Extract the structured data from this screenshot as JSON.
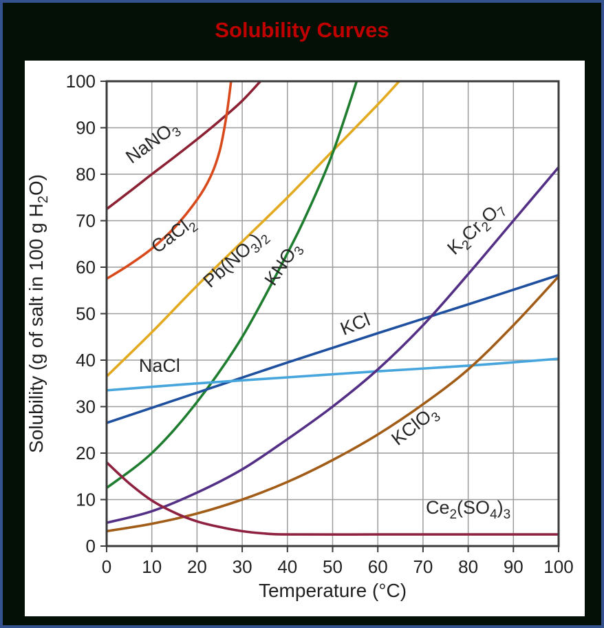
{
  "header": {
    "title": "Solubility Curves",
    "title_color": "#c00000"
  },
  "canvas": {
    "background": "#041005",
    "border_color": "#35548f",
    "panel_color": "#ffffff"
  },
  "chart_data": {
    "type": "line",
    "title": "Solubility Curves",
    "xlabel": "Temperature (°C)",
    "ylabel": "Solubility (g of salt in 100 g H₂O)",
    "ylabel_segments": [
      [
        "Solubility (g of salt in 100 g H",
        0
      ],
      [
        "2",
        1
      ],
      [
        "O)",
        0
      ]
    ],
    "xlim": [
      0,
      100
    ],
    "ylim": [
      0,
      100
    ],
    "xticks": [
      0,
      10,
      20,
      30,
      40,
      50,
      60,
      70,
      80,
      90,
      100
    ],
    "yticks": [
      0,
      10,
      20,
      30,
      40,
      50,
      60,
      70,
      80,
      90,
      100
    ],
    "grid": true,
    "grid_color": "#9c9c9c",
    "axis_color": "#3a3a3a",
    "text_color": "#1f1f1f",
    "series": [
      {
        "name": "NaNO3",
        "label": "NaNO₃",
        "label_segments": [
          [
            "NaNO",
            0
          ],
          [
            "3",
            1
          ]
        ],
        "color": "#8c2133",
        "points": [
          [
            0,
            72.5
          ],
          [
            5,
            76.2
          ],
          [
            10,
            80
          ],
          [
            15,
            83.7
          ],
          [
            20,
            87.5
          ],
          [
            25,
            91.5
          ],
          [
            30,
            95.8
          ],
          [
            34.5,
            100.5
          ]
        ],
        "label_pos": {
          "x": 10.8,
          "y": 85.9,
          "rot": -36
        }
      },
      {
        "name": "CaCl2",
        "label": "CaCl₂",
        "label_segments": [
          [
            "CaCl",
            0
          ],
          [
            "2",
            1
          ]
        ],
        "color": "#d84a1c",
        "points": [
          [
            0,
            57.5
          ],
          [
            5,
            60.5
          ],
          [
            10,
            64
          ],
          [
            15,
            68.5
          ],
          [
            20,
            74.5
          ],
          [
            23,
            79.5
          ],
          [
            25,
            85
          ],
          [
            26.5,
            92.5
          ],
          [
            27.6,
            100.5
          ]
        ],
        "label_pos": {
          "x": 15.5,
          "y": 66.0,
          "rot": -37
        }
      },
      {
        "name": "Pb(NO3)2",
        "label": "Pb(NO₃)₂",
        "label_segments": [
          [
            "Pb(NO",
            0
          ],
          [
            "3",
            1
          ],
          [
            ")",
            0
          ],
          [
            "2",
            1
          ]
        ],
        "color": "#e3a91f",
        "points": [
          [
            0,
            36.5
          ],
          [
            10,
            46
          ],
          [
            20,
            56
          ],
          [
            30,
            65.5
          ],
          [
            40,
            75
          ],
          [
            50,
            85
          ],
          [
            60,
            95
          ],
          [
            65.2,
            100.5
          ]
        ],
        "label_pos": {
          "x": 29.3,
          "y": 61.0,
          "rot": -42
        }
      },
      {
        "name": "KNO3",
        "label": "KNO₃",
        "label_segments": [
          [
            "KNO",
            0
          ],
          [
            "3",
            1
          ]
        ],
        "color": "#1f7d2f",
        "points": [
          [
            0,
            12.5
          ],
          [
            10,
            20
          ],
          [
            20,
            31
          ],
          [
            30,
            45
          ],
          [
            40,
            63
          ],
          [
            45,
            73
          ],
          [
            50,
            84.5
          ],
          [
            55.5,
            100.5
          ]
        ],
        "label_pos": {
          "x": 40.0,
          "y": 60.0,
          "rot": -56
        }
      },
      {
        "name": "KCl",
        "label": "KCl",
        "label_segments": [
          [
            "KCl",
            0
          ]
        ],
        "color": "#1f4f9f",
        "points": [
          [
            0,
            26.5
          ],
          [
            20,
            33
          ],
          [
            40,
            39.5
          ],
          [
            60,
            45.8
          ],
          [
            80,
            52
          ],
          [
            100,
            58.3
          ]
        ],
        "label_pos": {
          "x": 55.5,
          "y": 46.5,
          "rot": -22
        }
      },
      {
        "name": "NaCl",
        "label": "NaCl",
        "label_segments": [
          [
            "NaCl",
            0
          ]
        ],
        "color": "#46a5dc",
        "points": [
          [
            0,
            33.5
          ],
          [
            20,
            35
          ],
          [
            40,
            36.3
          ],
          [
            60,
            37.6
          ],
          [
            80,
            38.8
          ],
          [
            100,
            40.3
          ]
        ],
        "label_pos": {
          "x": 11.7,
          "y": 37.5,
          "rot": 0
        }
      },
      {
        "name": "KClO3",
        "label": "KClO₃",
        "label_segments": [
          [
            "KClO",
            0
          ],
          [
            "3",
            1
          ]
        ],
        "color": "#a15c17",
        "points": [
          [
            0,
            3.2
          ],
          [
            10,
            4.8
          ],
          [
            20,
            7
          ],
          [
            30,
            10
          ],
          [
            40,
            13.8
          ],
          [
            50,
            18.5
          ],
          [
            60,
            24
          ],
          [
            70,
            30.5
          ],
          [
            80,
            38
          ],
          [
            90,
            47.5
          ],
          [
            100,
            58
          ]
        ],
        "label_pos": {
          "x": 68.9,
          "y": 24.9,
          "rot": -38
        }
      },
      {
        "name": "K2Cr2O7",
        "label": "K₂Cr₂O₇",
        "label_segments": [
          [
            "K",
            0
          ],
          [
            "2",
            1
          ],
          [
            "Cr",
            0
          ],
          [
            "2",
            1
          ],
          [
            "O",
            0
          ],
          [
            "7",
            1
          ]
        ],
        "color": "#533085",
        "points": [
          [
            0,
            5
          ],
          [
            10,
            7.5
          ],
          [
            20,
            11.5
          ],
          [
            30,
            16.5
          ],
          [
            40,
            23
          ],
          [
            50,
            30
          ],
          [
            60,
            38
          ],
          [
            70,
            47.5
          ],
          [
            80,
            58.5
          ],
          [
            90,
            70
          ],
          [
            100,
            81.5
          ]
        ],
        "label_pos": {
          "x": 82.5,
          "y": 67.5,
          "rot": -43
        }
      },
      {
        "name": "Ce2(SO4)3",
        "label": "Ce₂(SO₄)₃",
        "label_segments": [
          [
            "Ce",
            0
          ],
          [
            "2",
            1
          ],
          [
            "(SO",
            0
          ],
          [
            "4",
            1
          ],
          [
            ")",
            0
          ],
          [
            "3",
            1
          ]
        ],
        "color": "#8e2140",
        "points": [
          [
            0,
            18
          ],
          [
            5,
            13.5
          ],
          [
            10,
            9.8
          ],
          [
            15,
            7.2
          ],
          [
            20,
            5.3
          ],
          [
            25,
            4.1
          ],
          [
            30,
            3.2
          ],
          [
            35,
            2.7
          ],
          [
            40,
            2.5
          ],
          [
            60,
            2.5
          ],
          [
            80,
            2.5
          ],
          [
            100,
            2.5
          ]
        ],
        "label_pos": {
          "x": 80.0,
          "y": 7.0,
          "rot": 0
        }
      }
    ]
  }
}
